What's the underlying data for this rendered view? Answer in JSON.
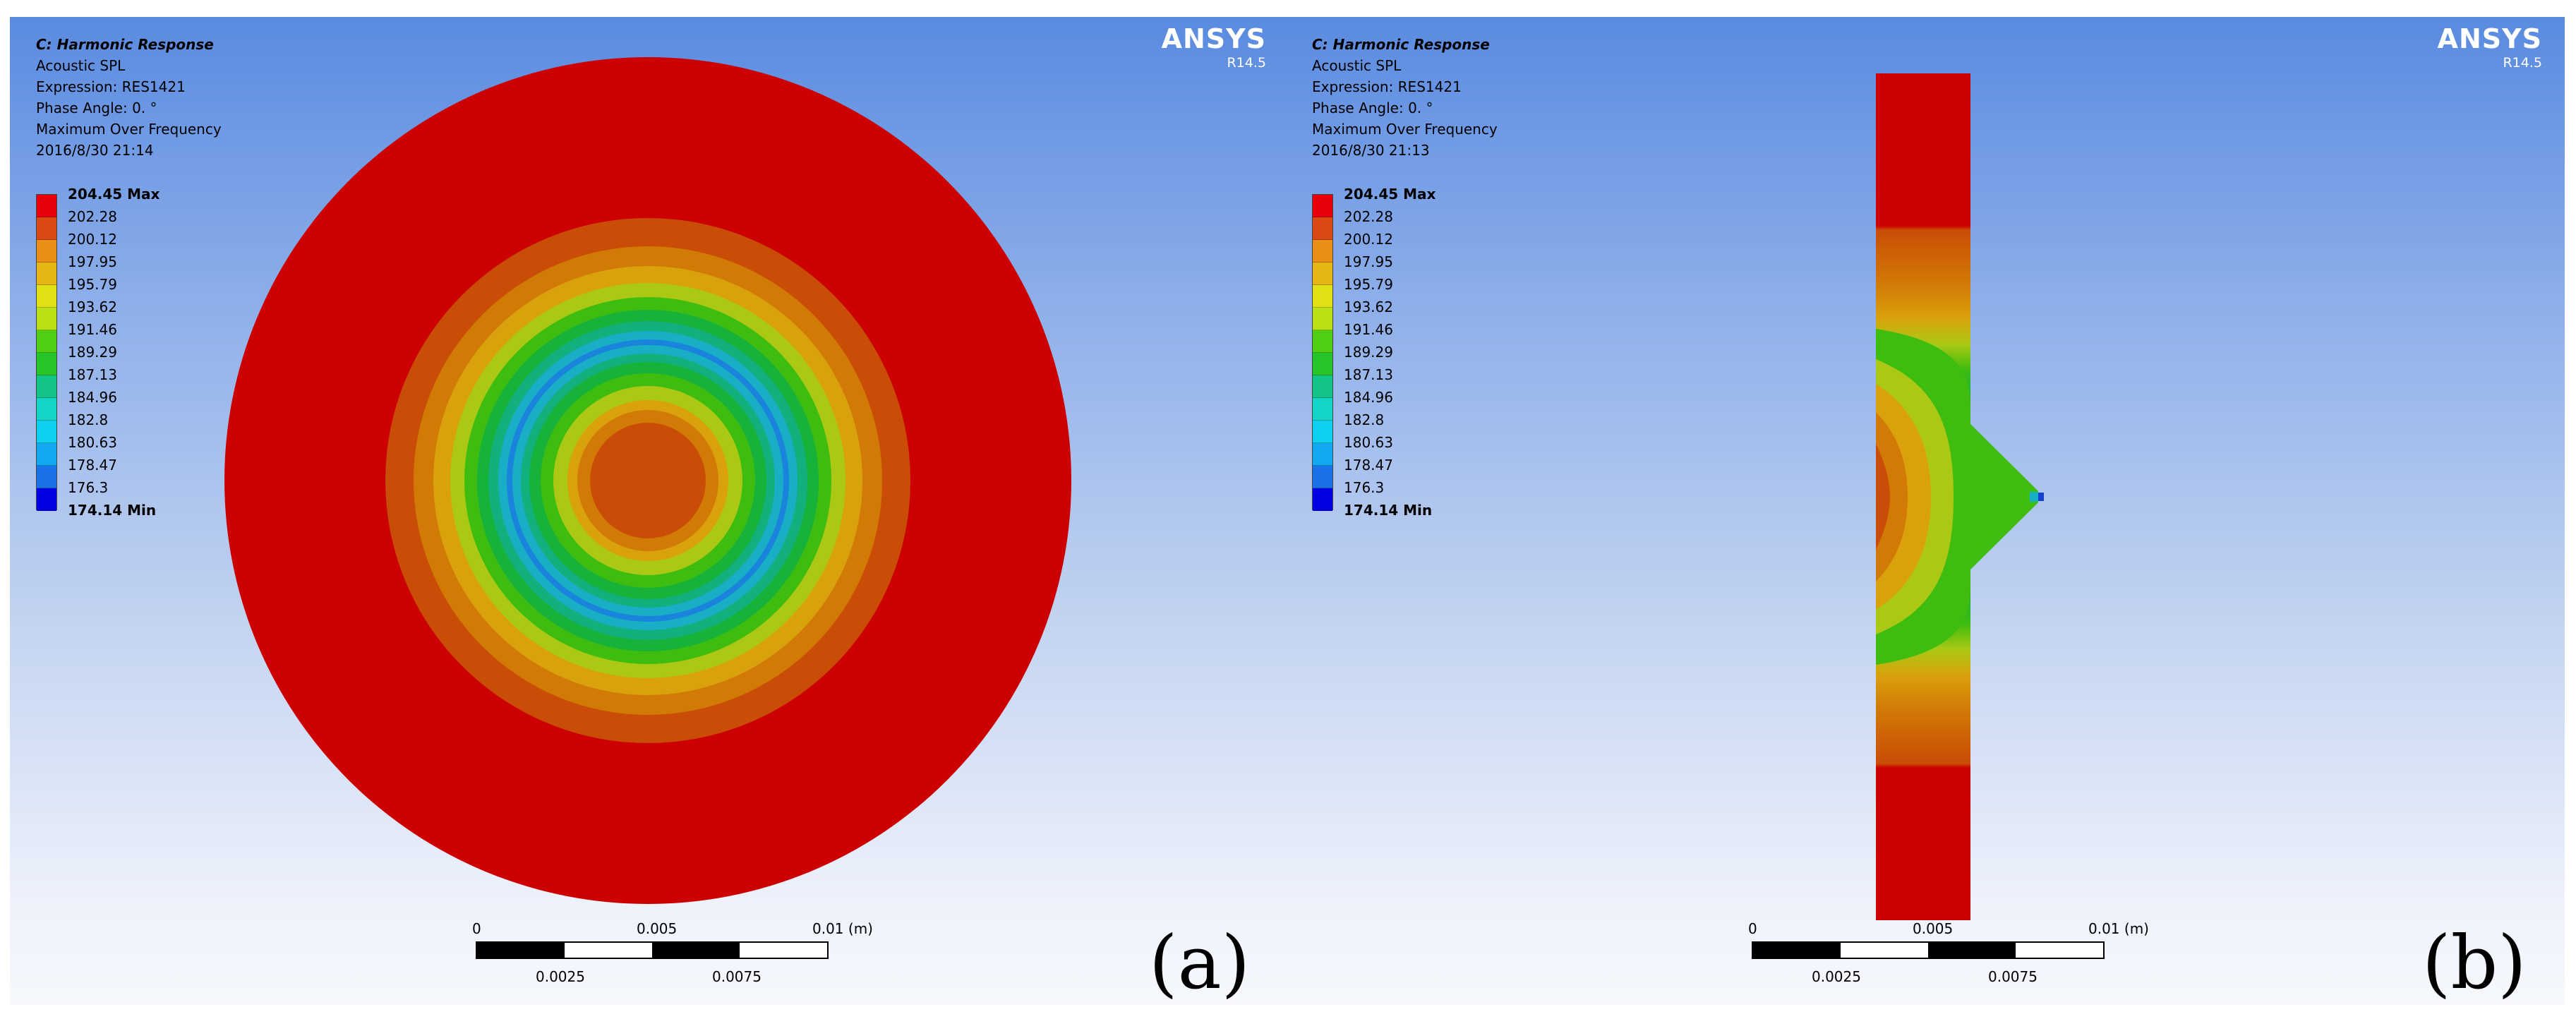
{
  "panel_a": {
    "title": "C: Harmonic Response",
    "lines": [
      "Acoustic SPL",
      "Expression: RES1421",
      "Phase Angle: 0. °",
      "Maximum Over Frequency",
      "2016/8/30 21:14"
    ],
    "brand": "ANSYS",
    "version": "R14.5",
    "figure_label": "(a)"
  },
  "panel_b": {
    "title": "C: Harmonic Response",
    "lines": [
      "Acoustic SPL",
      "Expression: RES1421",
      "Phase Angle: 0. °",
      "Maximum Over Frequency",
      "2016/8/30 21:13"
    ],
    "brand": "ANSYS",
    "version": "R14.5",
    "figure_label": "(b)"
  },
  "legend": {
    "labels": [
      "204.45 Max",
      "202.28",
      "200.12",
      "197.95",
      "195.79",
      "193.62",
      "191.46",
      "189.29",
      "187.13",
      "184.96",
      "182.8",
      "180.63",
      "178.47",
      "176.3",
      "174.14 Min"
    ],
    "colors": [
      "#e8000b",
      "#d94a12",
      "#ea8e16",
      "#e6b614",
      "#e0e014",
      "#b9e015",
      "#4fcf12",
      "#27c427",
      "#14c486",
      "#14d3c7",
      "#0fcff0",
      "#12a8ef",
      "#1a72ea",
      "#0000e0"
    ]
  },
  "scale_bar": {
    "ticks": [
      "0",
      "0.005",
      "0.01 (m)"
    ],
    "subticks": [
      "0.0025",
      "0.0075"
    ]
  }
}
